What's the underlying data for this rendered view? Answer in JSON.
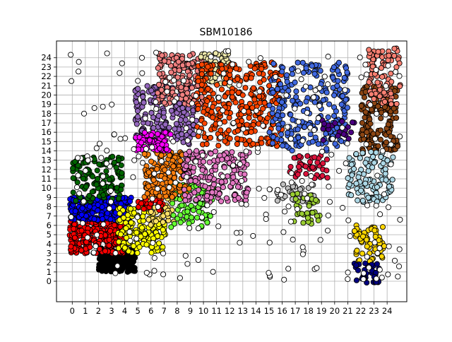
{
  "chart_data": {
    "type": "scatter",
    "title": "SBM10186",
    "xlabel": "",
    "ylabel": "",
    "xlim": [
      -1.2,
      25.5
    ],
    "ylim": [
      -2.2,
      25.8
    ],
    "x_ticks": [
      0,
      1,
      2,
      3,
      4,
      5,
      6,
      7,
      8,
      9,
      10,
      11,
      12,
      13,
      14,
      15,
      16,
      17,
      18,
      19,
      20,
      21,
      22,
      23,
      24
    ],
    "y_ticks": [
      0,
      1,
      2,
      3,
      4,
      5,
      6,
      7,
      8,
      9,
      10,
      11,
      12,
      13,
      14,
      15,
      16,
      17,
      18,
      19,
      20,
      21,
      22,
      23,
      24
    ],
    "x_tick_labels": [
      "0",
      "1",
      "2",
      "3",
      "4",
      "5",
      "6",
      "7",
      "8",
      "9",
      "10",
      "11",
      "12",
      "13",
      "14",
      "15",
      "16",
      "17",
      "18",
      "19",
      "20",
      "21",
      "22",
      "23",
      "24"
    ],
    "y_tick_labels": [
      "0",
      "1",
      "2",
      "3",
      "4",
      "5",
      "6",
      "7",
      "8",
      "9",
      "10",
      "11",
      "12",
      "13",
      "14",
      "15",
      "16",
      "17",
      "18",
      "19",
      "20",
      "21",
      "22",
      "23",
      "24"
    ],
    "grid": true,
    "marker": "circle with black edge",
    "clusters": [
      {
        "color": "#000000",
        "x": [
          2.0,
          4.8
        ],
        "y": [
          1.0,
          3.6
        ],
        "n": 180
      },
      {
        "color": "#ff0000",
        "x": [
          -0.2,
          4.0
        ],
        "y": [
          3.0,
          6.5
        ],
        "n": 220
      },
      {
        "color": "#0000ff",
        "x": [
          -0.2,
          4.5
        ],
        "y": [
          6.5,
          9.0
        ],
        "n": 260
      },
      {
        "color": "#006400",
        "x": [
          0.0,
          3.8
        ],
        "y": [
          8.5,
          13.5
        ],
        "n": 120
      },
      {
        "color": "#ffff00",
        "x": [
          3.5,
          7.2
        ],
        "y": [
          3.0,
          8.0
        ],
        "n": 150
      },
      {
        "color": "#ffe066",
        "x": [
          5.8,
          8.0
        ],
        "y": [
          6.0,
          9.0
        ],
        "n": 40
      },
      {
        "color": "#ff0000",
        "x": [
          5.0,
          7.0
        ],
        "y": [
          7.5,
          9.0
        ],
        "n": 25
      },
      {
        "color": "#66ff33",
        "x": [
          7.5,
          10.8
        ],
        "y": [
          5.8,
          10.5
        ],
        "n": 90
      },
      {
        "color": "#ff7f0e",
        "x": [
          5.5,
          9.0
        ],
        "y": [
          9.0,
          14.0
        ],
        "n": 160
      },
      {
        "color": "#e377c2",
        "x": [
          8.5,
          13.5
        ],
        "y": [
          8.5,
          14.0
        ],
        "n": 180
      },
      {
        "color": "#9467bd",
        "x": [
          4.8,
          9.5
        ],
        "y": [
          14.5,
          21.0
        ],
        "n": 200
      },
      {
        "color": "#ff00ff",
        "x": [
          4.8,
          7.5
        ],
        "y": [
          14.0,
          16.0
        ],
        "n": 70
      },
      {
        "color": "#f08080",
        "x": [
          6.5,
          10.0
        ],
        "y": [
          19.0,
          24.5
        ],
        "n": 170
      },
      {
        "color": "#eee8aa",
        "x": [
          9.8,
          12.0
        ],
        "y": [
          21.0,
          24.5
        ],
        "n": 80
      },
      {
        "color": "#ff4500",
        "x": [
          9.5,
          16.0
        ],
        "y": [
          14.5,
          23.5
        ],
        "n": 320
      },
      {
        "color": "#4169e1",
        "x": [
          15.0,
          21.0
        ],
        "y": [
          14.0,
          23.5
        ],
        "n": 230
      },
      {
        "color": "#4b0082",
        "x": [
          19.0,
          21.5
        ],
        "y": [
          15.0,
          17.5
        ],
        "n": 20
      },
      {
        "color": "#dc143c",
        "x": [
          16.5,
          19.5
        ],
        "y": [
          11.0,
          13.5
        ],
        "n": 40
      },
      {
        "color": "#c0c0c0",
        "x": [
          15.5,
          18.5
        ],
        "y": [
          8.5,
          10.5
        ],
        "n": 35
      },
      {
        "color": "#9acd32",
        "x": [
          16.8,
          19.0
        ],
        "y": [
          6.0,
          9.5
        ],
        "n": 35
      },
      {
        "color": "#8b4513",
        "x": [
          22.0,
          24.8
        ],
        "y": [
          14.0,
          21.0
        ],
        "n": 160
      },
      {
        "color": "#fa8072",
        "x": [
          22.5,
          25.0
        ],
        "y": [
          19.0,
          25.0
        ],
        "n": 90
      },
      {
        "color": "#add8e6",
        "x": [
          21.0,
          24.5
        ],
        "y": [
          8.5,
          14.0
        ],
        "n": 110
      },
      {
        "color": "#ffd700",
        "x": [
          21.5,
          23.8
        ],
        "y": [
          2.0,
          6.0
        ],
        "n": 60
      },
      {
        "color": "#000080",
        "x": [
          21.5,
          23.5
        ],
        "y": [
          -0.2,
          2.0
        ],
        "n": 35
      },
      {
        "color": "#ffffff",
        "x": [
          -0.2,
          25.0
        ],
        "y": [
          0.0,
          25.0
        ],
        "n": 260
      }
    ]
  }
}
